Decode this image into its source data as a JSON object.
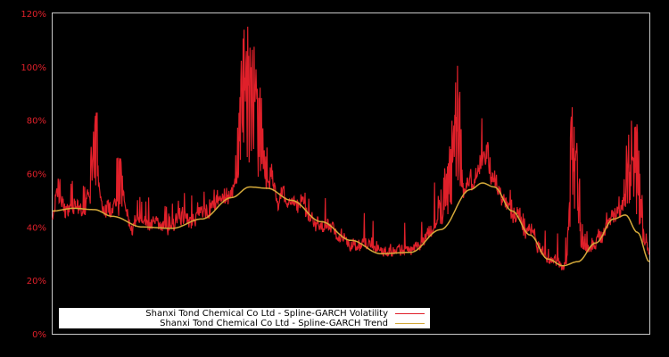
{
  "chart_data": {
    "type": "line",
    "title": "",
    "xlabel": "",
    "ylabel": "",
    "ylim": [
      0,
      120
    ],
    "yticks": [
      "0%",
      "20%",
      "40%",
      "60%",
      "80%",
      "100%",
      "120%"
    ],
    "grid": false,
    "legend_position": "lower left",
    "colors": {
      "background": "#000000",
      "axis": "#c8c8c8",
      "ticks": "#e0202a",
      "volatility": "#e0202a",
      "trend": "#d4a93a"
    },
    "series": [
      {
        "name": "Shanxi Tond Chemical Co Ltd - Spline-GARCH Volatility",
        "x": [
          0,
          0.01,
          0.02,
          0.05,
          0.07,
          0.075,
          0.085,
          0.1,
          0.11,
          0.13,
          0.15,
          0.17,
          0.19,
          0.21,
          0.25,
          0.3,
          0.32,
          0.335,
          0.345,
          0.36,
          0.38,
          0.4,
          0.45,
          0.5,
          0.55,
          0.6,
          0.63,
          0.66,
          0.68,
          0.69,
          0.7,
          0.72,
          0.74,
          0.75,
          0.8,
          0.83,
          0.86,
          0.87,
          0.9,
          0.95,
          0.97,
          1.0
        ],
        "values": [
          45,
          60,
          42,
          40,
          82,
          88,
          45,
          48,
          73,
          36,
          40,
          43,
          35,
          45,
          42,
          48,
          118,
          112,
          95,
          72,
          45,
          40,
          35,
          30,
          30,
          28,
          38,
          65,
          104,
          50,
          58,
          82,
          62,
          48,
          36,
          25,
          22,
          85,
          30,
          42,
          92,
          33
        ]
      },
      {
        "name": "Shanxi Tond Chemical Co Ltd - Spline-GARCH Trend",
        "x": [
          0,
          0.035,
          0.07,
          0.1,
          0.15,
          0.2,
          0.25,
          0.3,
          0.33,
          0.36,
          0.4,
          0.45,
          0.5,
          0.55,
          0.6,
          0.65,
          0.7,
          0.72,
          0.74,
          0.77,
          0.8,
          0.83,
          0.855,
          0.88,
          0.91,
          0.94,
          0.96,
          0.98,
          1.0
        ],
        "values": [
          46,
          47,
          46.5,
          44,
          40,
          39.5,
          43,
          51,
          55,
          54.5,
          50,
          42,
          35,
          30,
          30.5,
          39,
          54,
          56.5,
          55,
          46,
          37,
          28,
          25.5,
          27,
          34,
          43,
          44.5,
          38,
          27
        ]
      }
    ]
  },
  "legend": {
    "items": [
      {
        "label": "Shanxi Tond Chemical Co Ltd - Spline-GARCH Volatility",
        "color": "#e0202a"
      },
      {
        "label": "Shanxi Tond Chemical Co Ltd - Spline-GARCH Trend",
        "color": "#d4a93a"
      }
    ]
  }
}
